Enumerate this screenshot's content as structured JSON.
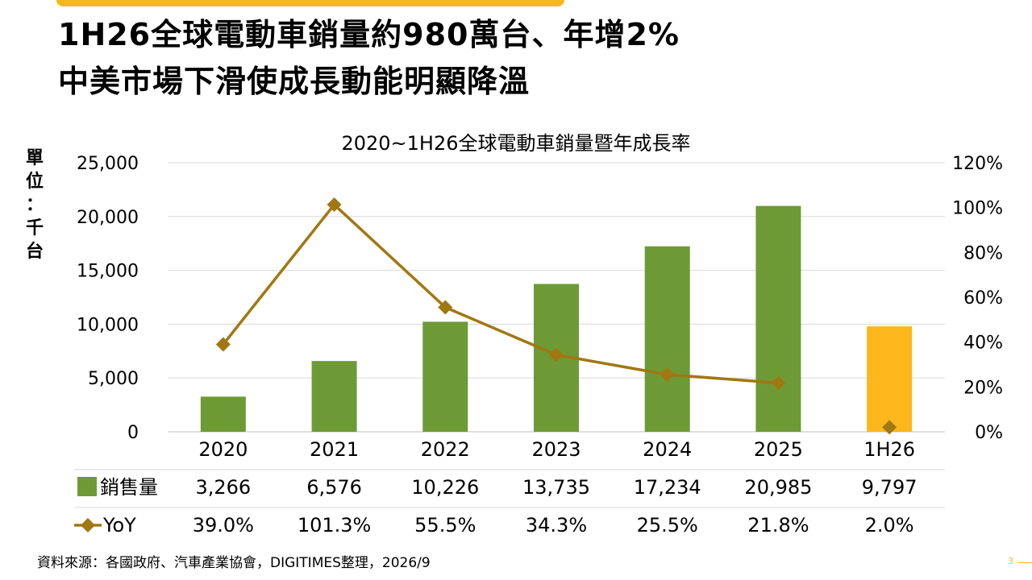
{
  "slide": {
    "title_lines": [
      "1H26全球電動車銷量約980萬台、年增2%",
      "中美市場下滑使成長動能明顯降溫"
    ],
    "unit_chars": [
      "單",
      "位",
      "：",
      "千",
      "台"
    ],
    "source": "資料來源：各國政府、汽車產業協會，DIGITIMES整理，2026/9",
    "page_number": "3",
    "accent_color": "#f5b81c"
  },
  "chart_data": {
    "type": "bar",
    "title": "2020~1H26全球電動車銷量暨年成長率",
    "categories": [
      "2020",
      "2021",
      "2022",
      "2023",
      "2024",
      "2025",
      "1H26"
    ],
    "series": [
      {
        "name": "銷售量",
        "type": "bar",
        "axis": "left",
        "values": [
          3266,
          6576,
          10226,
          13735,
          17234,
          20985,
          9797
        ],
        "labels": [
          "3,266",
          "6,576",
          "10,226",
          "13,735",
          "17,234",
          "20,985",
          "9,797"
        ],
        "color": "#6e9a36",
        "highlight_color": "#fbb71c",
        "highlight_index": 6
      },
      {
        "name": "YoY",
        "type": "line",
        "axis": "right",
        "marker": "diamond",
        "values": [
          39.0,
          101.3,
          55.5,
          34.3,
          25.5,
          21.8,
          2.0
        ],
        "labels": [
          "39.0%",
          "101.3%",
          "55.5%",
          "34.3%",
          "25.5%",
          "21.8%",
          "2.0%"
        ],
        "color": "#a07812",
        "connected_points": 6
      }
    ],
    "y_left": {
      "ylim": [
        0,
        25000
      ],
      "ticks": [
        0,
        5000,
        10000,
        15000,
        20000,
        25000
      ],
      "tick_labels": [
        "0",
        "5,000",
        "10,000",
        "15,000",
        "20,000",
        "25,000"
      ]
    },
    "y_right": {
      "ylim": [
        0,
        120
      ],
      "ticks": [
        0,
        20,
        40,
        60,
        80,
        100,
        120
      ],
      "tick_labels": [
        "0%",
        "20%",
        "40%",
        "60%",
        "80%",
        "100%",
        "120%"
      ]
    },
    "grid": true,
    "legend": "data-table"
  }
}
